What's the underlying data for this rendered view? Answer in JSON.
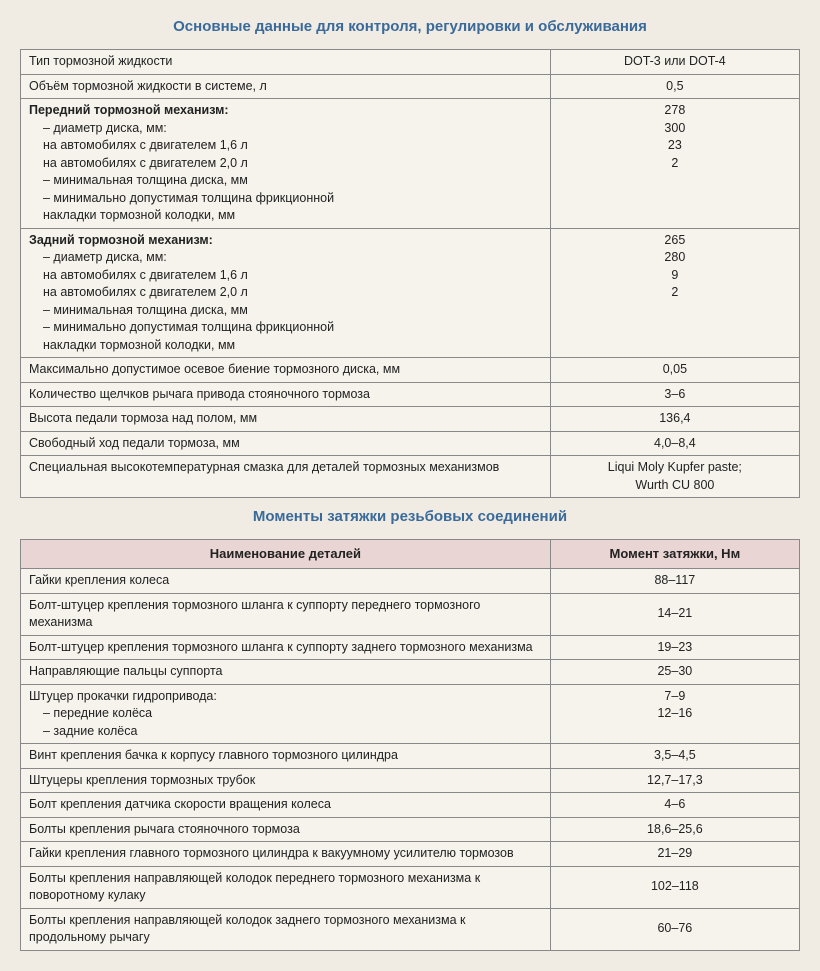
{
  "section1_title": "Основные данные для контроля, регулировки и обслуживания",
  "section2_title": "Моменты затяжки резьбовых соединений",
  "table1": {
    "rows": [
      {
        "label_lines": [
          "Тип тормозной жидкости"
        ],
        "value": "DOT-3 или DOT-4"
      },
      {
        "label_lines": [
          "Объём тормозной жидкости в системе, л"
        ],
        "value": "0,5"
      },
      {
        "label_lines": [
          {
            "text": "Передний тормозной механизм:",
            "bold": true
          },
          {
            "text": "– диаметр диска, мм:",
            "indent": true
          },
          {
            "text": "на автомобилях с двигателем 1,6 л",
            "indent": true
          },
          {
            "text": "на автомобилях с двигателем 2,0 л",
            "indent": true
          },
          {
            "text": "– минимальная толщина диска, мм",
            "indent": true
          },
          {
            "text": "– минимально допустимая толщина фрикционной",
            "indent": true
          },
          {
            "text": "накладки тормозной колодки, мм",
            "indent": true
          }
        ],
        "value_lines": [
          "",
          "",
          "278",
          "300",
          "23",
          "",
          "2"
        ]
      },
      {
        "label_lines": [
          {
            "text": "Задний тормозной механизм:",
            "bold": true
          },
          {
            "text": "– диаметр диска, мм:",
            "indent": true
          },
          {
            "text": "на автомобилях с двигателем 1,6 л",
            "indent": true
          },
          {
            "text": "на автомобилях с двигателем 2,0 л",
            "indent": true
          },
          {
            "text": "– минимальная толщина диска, мм",
            "indent": true
          },
          {
            "text": "– минимально допустимая толщина фрикционной",
            "indent": true
          },
          {
            "text": "накладки тормозной колодки, мм",
            "indent": true
          }
        ],
        "value_lines": [
          "",
          "",
          "265",
          "280",
          "9",
          "",
          "2"
        ]
      },
      {
        "label_lines": [
          "Максимально допустимое осевое биение тормозного диска, мм"
        ],
        "value": "0,05"
      },
      {
        "label_lines": [
          "Количество щелчков рычага привода стояночного тормоза"
        ],
        "value": "3–6"
      },
      {
        "label_lines": [
          "Высота педали тормоза над полом, мм"
        ],
        "value": "136,4"
      },
      {
        "label_lines": [
          "Свободный ход педали тормоза, мм"
        ],
        "value": "4,0–8,4"
      },
      {
        "label_lines": [
          "Специальная высокотемпературная смазка для деталей тормозных механизмов"
        ],
        "value_lines": [
          "Liqui Moly Kupfer paste;",
          "Wurth CU 800"
        ]
      }
    ]
  },
  "table2": {
    "header_left": "Наименование деталей",
    "header_right": "Момент затяжки, Нм",
    "rows": [
      {
        "label": "Гайки крепления колеса",
        "value": "88–117"
      },
      {
        "label": "Болт-штуцер крепления тормозного шланга к суппорту переднего тормозного механизма",
        "value": "14–21"
      },
      {
        "label": "Болт-штуцер крепления тормозного шланга к суппорту заднего тормозного механизма",
        "value": "19–23"
      },
      {
        "label": "Направляющие пальцы суппорта",
        "value": "25–30"
      },
      {
        "label_lines": [
          "Штуцер прокачки гидропривода:",
          {
            "text": "– передние колёса",
            "indent": true
          },
          {
            "text": "– задние колёса",
            "indent": true
          }
        ],
        "value_lines": [
          "",
          "7–9",
          "12–16"
        ]
      },
      {
        "label": "Винт крепления бачка к корпусу главного тормозного цилиндра",
        "value": "3,5–4,5"
      },
      {
        "label": "Штуцеры крепления тормозных трубок",
        "value": "12,7–17,3"
      },
      {
        "label": "Болт крепления датчика скорости вращения колеса",
        "value": "4–6"
      },
      {
        "label": "Болты крепления рычага стояночного тормоза",
        "value": "18,6–25,6"
      },
      {
        "label": "Гайки крепления главного тормозного цилиндра к вакуумному усилителю тормозов",
        "value": "21–29"
      },
      {
        "label": "Болты крепления направляющей колодок переднего тормозного механизма к поворотному кулаку",
        "value": "102–118"
      },
      {
        "label": "Болты крепления направляющей колодок заднего тормозного механизма к продольному рычагу",
        "value": "60–76"
      }
    ]
  }
}
